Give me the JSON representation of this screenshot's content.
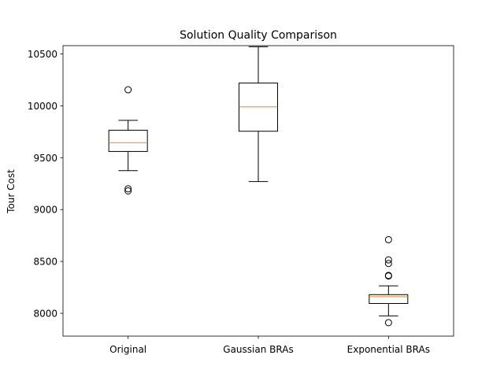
{
  "chart_data": {
    "type": "box",
    "title": "Solution Quality Comparison",
    "xlabel": "",
    "ylabel": "Tour Cost",
    "ylim": [
      7780,
      10580
    ],
    "grid": false,
    "categories": [
      "Original",
      "Gaussian BRAs",
      "Exponential BRAs"
    ],
    "yticks": [
      8000,
      8500,
      9000,
      9500,
      10000,
      10500
    ],
    "ytick_labels": [
      "8000",
      "8500",
      "9000",
      "9500",
      "10000",
      "10500"
    ],
    "boxes": [
      {
        "category": "Original",
        "whisker_low": 9375,
        "q1": 9560,
        "median": 9645,
        "q3": 9765,
        "whisker_high": 9860,
        "outliers": [
          10155,
          9200,
          9180
        ]
      },
      {
        "category": "Gaussian BRAs",
        "whisker_low": 9270,
        "q1": 9755,
        "median": 9990,
        "q3": 10220,
        "whisker_high": 10570,
        "outliers": []
      },
      {
        "category": "Exponential BRAs",
        "whisker_low": 7975,
        "q1": 8095,
        "median": 8160,
        "q3": 8180,
        "whisker_high": 8265,
        "outliers": [
          8710,
          8515,
          8480,
          8365,
          8360,
          7910
        ]
      }
    ],
    "colors": {
      "box": "#000000",
      "median": "#ff7f0e"
    }
  }
}
